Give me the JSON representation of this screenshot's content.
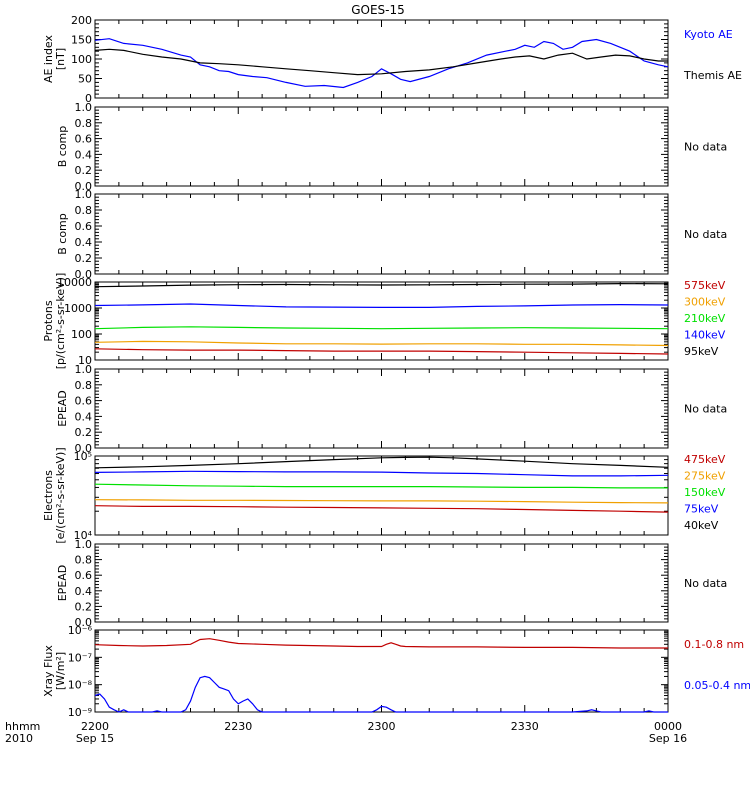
{
  "title": "GOES-15",
  "x_axis": {
    "label_top": "hhmm",
    "label_bottom": "2010",
    "ticks": [
      {
        "t": 0,
        "top": "2200",
        "bottom": "Sep 15"
      },
      {
        "t": 30,
        "top": "2230",
        "bottom": ""
      },
      {
        "t": 60,
        "top": "2300",
        "bottom": ""
      },
      {
        "t": 90,
        "top": "2330",
        "bottom": ""
      },
      {
        "t": 120,
        "top": "0000",
        "bottom": "Sep 16"
      }
    ]
  },
  "colors": {
    "black": "#000000",
    "blue": "#0000ff",
    "green": "#00e000",
    "orange": "#f0a000",
    "red": "#c00000"
  },
  "chart_data": [
    {
      "type": "line",
      "id": "ae",
      "ylabel": [
        "AE index",
        "[nT]"
      ],
      "scale": "linear",
      "ylim": [
        0,
        200
      ],
      "yticks": [
        0,
        50,
        100,
        150,
        200
      ],
      "yticklabels": [
        "0",
        "50",
        "100",
        "150",
        "200"
      ],
      "legend": [
        {
          "text": "Kyoto AE",
          "color": "blue"
        },
        {
          "text": "Themis AE",
          "color": "black"
        }
      ],
      "series": [
        {
          "name": "Kyoto AE",
          "color": "blue",
          "x": [
            0,
            3,
            6,
            10,
            14,
            18,
            20,
            22,
            24,
            26,
            28,
            30,
            33,
            36,
            40,
            44,
            48,
            52,
            55,
            58,
            60,
            62,
            64,
            66,
            70,
            74,
            78,
            82,
            86,
            88,
            90,
            92,
            94,
            96,
            98,
            100,
            102,
            105,
            108,
            112,
            115,
            118,
            120
          ],
          "y": [
            148,
            152,
            140,
            135,
            125,
            110,
            105,
            85,
            80,
            70,
            68,
            60,
            55,
            52,
            40,
            30,
            32,
            27,
            40,
            55,
            75,
            62,
            48,
            42,
            55,
            75,
            90,
            110,
            120,
            125,
            135,
            130,
            145,
            140,
            125,
            130,
            145,
            150,
            140,
            120,
            95,
            85,
            80
          ]
        },
        {
          "name": "Themis AE",
          "color": "black",
          "x": [
            0,
            3,
            6,
            10,
            14,
            18,
            22,
            26,
            30,
            35,
            40,
            45,
            50,
            55,
            60,
            65,
            70,
            75,
            80,
            85,
            88,
            91,
            94,
            97,
            100,
            103,
            106,
            109,
            112,
            115,
            118,
            120
          ],
          "y": [
            122,
            125,
            122,
            112,
            105,
            100,
            90,
            88,
            85,
            80,
            75,
            70,
            65,
            60,
            62,
            68,
            72,
            80,
            90,
            100,
            105,
            108,
            100,
            110,
            115,
            100,
            105,
            110,
            108,
            100,
            95,
            95
          ]
        }
      ]
    },
    {
      "type": "line",
      "id": "bcomp1",
      "ylabel": [
        "B comp"
      ],
      "scale": "linear",
      "ylim": [
        0,
        1
      ],
      "yticks": [
        0,
        0.2,
        0.4,
        0.6,
        0.8,
        1.0
      ],
      "yticklabels": [
        "0.0",
        "0.2",
        "0.4",
        "0.6",
        "0.8",
        "1.0"
      ],
      "legend": [
        {
          "text": "No data",
          "color": "black"
        }
      ],
      "series": []
    },
    {
      "type": "line",
      "id": "bcomp2",
      "ylabel": [
        "B comp"
      ],
      "scale": "linear",
      "ylim": [
        0,
        1
      ],
      "yticks": [
        0,
        0.2,
        0.4,
        0.6,
        0.8,
        1.0
      ],
      "yticklabels": [
        "0.0",
        "0.2",
        "0.4",
        "0.6",
        "0.8",
        "1.0"
      ],
      "legend": [
        {
          "text": "No data",
          "color": "black"
        }
      ],
      "series": []
    },
    {
      "type": "line",
      "id": "protons",
      "ylabel": [
        "Protons",
        "[p/(cm²-s-sr-keV)]"
      ],
      "scale": "log",
      "ylim": [
        10,
        10000
      ],
      "yticks": [
        10,
        100,
        1000,
        10000
      ],
      "yticklabels": [
        "10",
        "100",
        "1000",
        "10000"
      ],
      "legend": [
        {
          "text": "575keV",
          "color": "red"
        },
        {
          "text": "300keV",
          "color": "orange"
        },
        {
          "text": "210keV",
          "color": "green"
        },
        {
          "text": "140keV",
          "color": "blue"
        },
        {
          "text": "95keV",
          "color": "black"
        }
      ],
      "series": [
        {
          "name": "95keV",
          "color": "black",
          "x": [
            0,
            10,
            20,
            30,
            40,
            50,
            60,
            70,
            80,
            90,
            100,
            110,
            120
          ],
          "y": [
            6600,
            7000,
            7600,
            7900,
            8000,
            7800,
            7700,
            7800,
            8000,
            8200,
            8300,
            8700,
            8500
          ]
        },
        {
          "name": "140keV",
          "color": "blue",
          "x": [
            0,
            10,
            20,
            30,
            40,
            50,
            60,
            70,
            80,
            90,
            100,
            110,
            120
          ],
          "y": [
            1250,
            1320,
            1420,
            1250,
            1100,
            1080,
            1050,
            1050,
            1150,
            1200,
            1300,
            1350,
            1300
          ]
        },
        {
          "name": "210keV",
          "color": "green",
          "x": [
            0,
            10,
            20,
            30,
            40,
            50,
            60,
            70,
            80,
            90,
            100,
            110,
            120
          ],
          "y": [
            160,
            180,
            190,
            180,
            170,
            165,
            160,
            165,
            170,
            175,
            170,
            165,
            160
          ]
        },
        {
          "name": "300keV",
          "color": "orange",
          "x": [
            0,
            10,
            20,
            30,
            40,
            50,
            60,
            70,
            80,
            90,
            100,
            110,
            120
          ],
          "y": [
            48,
            52,
            50,
            45,
            42,
            42,
            41,
            42,
            42,
            40,
            40,
            38,
            36
          ]
        },
        {
          "name": "575keV",
          "color": "red",
          "x": [
            0,
            10,
            20,
            30,
            40,
            50,
            60,
            70,
            80,
            90,
            100,
            110,
            120
          ],
          "y": [
            27,
            25,
            24,
            24,
            23,
            22,
            22,
            22,
            21,
            20,
            19,
            18,
            17
          ]
        }
      ]
    },
    {
      "type": "line",
      "id": "epead1",
      "ylabel": [
        "EPEAD"
      ],
      "scale": "linear",
      "ylim": [
        0,
        1
      ],
      "yticks": [
        0,
        0.2,
        0.4,
        0.6,
        0.8,
        1.0
      ],
      "yticklabels": [
        "0.0",
        "0.2",
        "0.4",
        "0.6",
        "0.8",
        "1.0"
      ],
      "legend": [
        {
          "text": "No data",
          "color": "black"
        }
      ],
      "series": []
    },
    {
      "type": "line",
      "id": "electrons",
      "ylabel": [
        "Electrons",
        "[e/(cm²-s-sr-keV)]"
      ],
      "scale": "log",
      "ylim": [
        10000,
        100000
      ],
      "yticks": [
        10000,
        100000
      ],
      "yticklabels": [
        "10⁴",
        "10⁵"
      ],
      "legend": [
        {
          "text": "475keV",
          "color": "red"
        },
        {
          "text": "275keV",
          "color": "orange"
        },
        {
          "text": "150keV",
          "color": "green"
        },
        {
          "text": "75keV",
          "color": "blue"
        },
        {
          "text": "40keV",
          "color": "black"
        }
      ],
      "series": [
        {
          "name": "40keV",
          "color": "black",
          "x": [
            0,
            10,
            20,
            30,
            40,
            50,
            60,
            65,
            70,
            75,
            80,
            90,
            100,
            110,
            120
          ],
          "y": [
            71000,
            73000,
            76000,
            80000,
            85000,
            90000,
            95000,
            96000,
            96500,
            95000,
            92000,
            86000,
            80000,
            76000,
            72000
          ]
        },
        {
          "name": "75keV",
          "color": "blue",
          "x": [
            0,
            10,
            20,
            30,
            40,
            50,
            60,
            70,
            80,
            90,
            100,
            110,
            120
          ],
          "y": [
            62000,
            63000,
            64000,
            63500,
            63000,
            63000,
            62500,
            61000,
            60000,
            58000,
            56000,
            56000,
            57000
          ]
        },
        {
          "name": "150keV",
          "color": "green",
          "x": [
            0,
            10,
            20,
            30,
            40,
            50,
            60,
            70,
            80,
            90,
            100,
            110,
            120
          ],
          "y": [
            44000,
            43000,
            42000,
            41500,
            41000,
            41000,
            41000,
            41000,
            40500,
            40000,
            40000,
            39500,
            39500
          ]
        },
        {
          "name": "275keV",
          "color": "orange",
          "x": [
            0,
            10,
            20,
            30,
            40,
            50,
            60,
            70,
            80,
            90,
            100,
            110,
            120
          ],
          "y": [
            28000,
            27800,
            27500,
            27500,
            27300,
            27200,
            27000,
            27000,
            26800,
            26500,
            26000,
            25700,
            25500
          ]
        },
        {
          "name": "475keV",
          "color": "red",
          "x": [
            0,
            10,
            20,
            30,
            40,
            50,
            60,
            70,
            80,
            90,
            100,
            110,
            120
          ],
          "y": [
            23500,
            23000,
            23000,
            22800,
            22500,
            22300,
            22000,
            21800,
            21500,
            21000,
            20500,
            20000,
            19500
          ]
        }
      ]
    },
    {
      "type": "line",
      "id": "epead2",
      "ylabel": [
        "EPEAD"
      ],
      "scale": "linear",
      "ylim": [
        0,
        1
      ],
      "yticks": [
        0,
        0.2,
        0.4,
        0.6,
        0.8,
        1.0
      ],
      "yticklabels": [
        "0.0",
        "0.2",
        "0.4",
        "0.6",
        "0.8",
        "1.0"
      ],
      "legend": [
        {
          "text": "No data",
          "color": "black"
        }
      ],
      "series": []
    },
    {
      "type": "line",
      "id": "xray",
      "ylabel": [
        "Xray Flux",
        "[W/m²]"
      ],
      "scale": "log",
      "ylim": [
        1e-09,
        1e-06
      ],
      "yticks": [
        1e-09,
        1e-08,
        1e-07,
        1e-06
      ],
      "yticklabels": [
        "10⁻⁹",
        "10⁻⁸",
        "10⁻⁷",
        "10⁻⁶"
      ],
      "legend": [
        {
          "text": "0.1-0.8 nm",
          "color": "red"
        },
        {
          "text": "0.05-0.4 nm",
          "color": "blue"
        }
      ],
      "series": [
        {
          "name": "0.1-0.8 nm",
          "color": "red",
          "x": [
            0,
            5,
            10,
            15,
            20,
            22,
            24,
            26,
            28,
            30,
            35,
            40,
            50,
            55,
            60,
            61,
            62,
            63,
            64,
            65,
            70,
            80,
            90,
            100,
            110,
            120
          ],
          "y": [
            2.9e-07,
            2.7e-07,
            2.6e-07,
            2.7e-07,
            3e-07,
            4.5e-07,
            4.8e-07,
            4.2e-07,
            3.6e-07,
            3.2e-07,
            3e-07,
            2.8e-07,
            2.6e-07,
            2.5e-07,
            2.5e-07,
            3e-07,
            3.4e-07,
            3e-07,
            2.6e-07,
            2.5e-07,
            2.4e-07,
            2.4e-07,
            2.3e-07,
            2.3e-07,
            2.2e-07,
            2.2e-07
          ]
        },
        {
          "name": "0.05-0.4 nm",
          "color": "blue",
          "x": [
            0,
            1,
            2,
            3,
            4,
            5,
            6,
            7,
            8,
            9,
            10,
            12,
            13,
            14,
            15,
            16,
            17,
            18,
            19,
            20,
            21,
            22,
            23,
            24,
            25,
            26,
            27,
            28,
            29,
            30,
            31,
            32,
            33,
            34,
            35,
            36,
            40,
            50,
            58,
            59,
            60,
            61,
            62,
            63,
            64,
            66,
            70,
            80,
            90,
            100,
            103,
            104,
            105,
            106,
            110,
            115,
            116,
            117,
            120
          ],
          "y": [
            4e-09,
            4.5e-09,
            3e-09,
            1.5e-09,
            1.2e-09,
            1e-09,
            1.2e-09,
            1e-09,
            1e-09,
            1e-09,
            1e-09,
            1e-09,
            1.1e-09,
            1e-09,
            1e-09,
            1e-09,
            1e-09,
            1e-09,
            1.2e-09,
            2.5e-09,
            8e-09,
            1.8e-08,
            2e-08,
            1.8e-08,
            1.2e-08,
            8e-09,
            7e-09,
            6e-09,
            3e-09,
            2e-09,
            2.5e-09,
            3e-09,
            2e-09,
            1.2e-09,
            1e-09,
            1e-09,
            1e-09,
            1e-09,
            1e-09,
            1.2e-09,
            1.6e-09,
            1.5e-09,
            1.2e-09,
            1e-09,
            1e-09,
            1e-09,
            1e-09,
            1e-09,
            1e-09,
            1e-09,
            1.1e-09,
            1.2e-09,
            1.1e-09,
            1e-09,
            1e-09,
            1e-09,
            1.1e-09,
            1e-09,
            1e-09
          ]
        }
      ]
    }
  ]
}
